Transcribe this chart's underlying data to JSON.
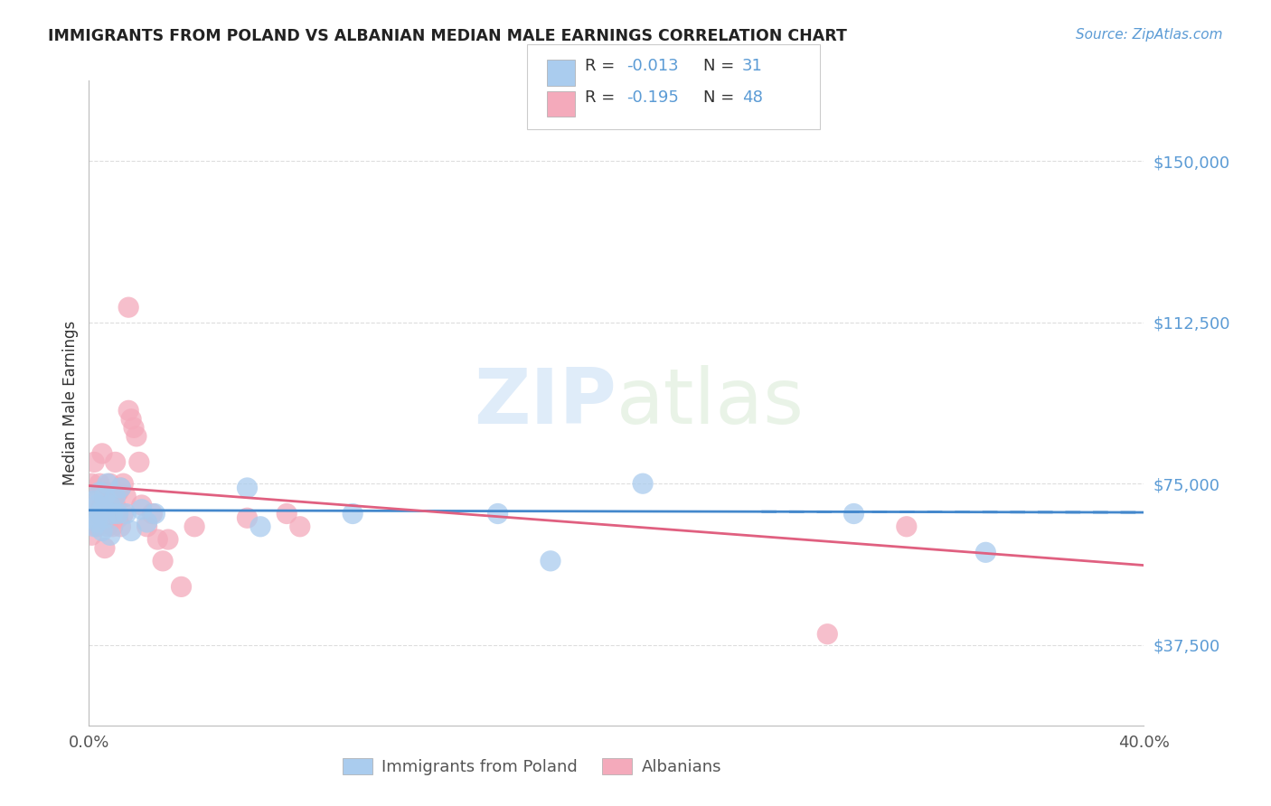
{
  "title": "IMMIGRANTS FROM POLAND VS ALBANIAN MEDIAN MALE EARNINGS CORRELATION CHART",
  "source": "Source: ZipAtlas.com",
  "ylabel": "Median Male Earnings",
  "yticks": [
    37500,
    75000,
    112500,
    150000
  ],
  "ytick_labels": [
    "$37,500",
    "$75,000",
    "$112,500",
    "$150,000"
  ],
  "xlim": [
    0.0,
    0.4
  ],
  "ylim": [
    18750,
    168750
  ],
  "legend_label1": "Immigrants from Poland",
  "legend_label2": "Albanians",
  "poland_color": "#aaccee",
  "albania_color": "#f4aabb",
  "poland_line_color": "#4488cc",
  "albania_line_color": "#e06080",
  "poland_R": -0.013,
  "poland_N": 31,
  "albania_R": -0.195,
  "albania_N": 48,
  "poland_scatter_x": [
    0.001,
    0.002,
    0.002,
    0.003,
    0.003,
    0.004,
    0.004,
    0.005,
    0.005,
    0.006,
    0.006,
    0.007,
    0.008,
    0.008,
    0.009,
    0.01,
    0.011,
    0.012,
    0.014,
    0.016,
    0.02,
    0.022,
    0.025,
    0.06,
    0.065,
    0.1,
    0.155,
    0.175,
    0.21,
    0.29,
    0.34
  ],
  "poland_scatter_y": [
    67000,
    71000,
    65000,
    70000,
    66000,
    68000,
    73000,
    69000,
    64000,
    72000,
    67000,
    75000,
    70000,
    63000,
    68000,
    72000,
    68000,
    74000,
    68000,
    64000,
    69000,
    66000,
    68000,
    74000,
    65000,
    68000,
    68000,
    57000,
    75000,
    68000,
    59000
  ],
  "albania_scatter_x": [
    0.001,
    0.001,
    0.002,
    0.002,
    0.003,
    0.003,
    0.004,
    0.004,
    0.005,
    0.005,
    0.006,
    0.006,
    0.006,
    0.007,
    0.007,
    0.007,
    0.008,
    0.008,
    0.009,
    0.009,
    0.01,
    0.01,
    0.011,
    0.011,
    0.012,
    0.012,
    0.013,
    0.013,
    0.014,
    0.015,
    0.015,
    0.016,
    0.017,
    0.018,
    0.019,
    0.02,
    0.022,
    0.024,
    0.026,
    0.028,
    0.03,
    0.035,
    0.04,
    0.06,
    0.075,
    0.08,
    0.28,
    0.31
  ],
  "albania_scatter_y": [
    63000,
    75000,
    68000,
    80000,
    72000,
    65000,
    75000,
    68000,
    70000,
    82000,
    73000,
    67000,
    60000,
    70000,
    65000,
    72000,
    68000,
    75000,
    71000,
    65000,
    80000,
    70000,
    73000,
    67000,
    74000,
    65000,
    75000,
    68000,
    72000,
    116000,
    92000,
    90000,
    88000,
    86000,
    80000,
    70000,
    65000,
    68000,
    62000,
    57000,
    62000,
    51000,
    65000,
    67000,
    68000,
    65000,
    40000,
    65000
  ],
  "poland_line_x0": 0.0,
  "poland_line_y0": 68800,
  "poland_line_x1": 0.4,
  "poland_line_y1": 68300,
  "albania_line_x0": 0.0,
  "albania_line_y0": 74500,
  "albania_line_x1": 0.4,
  "albania_line_y1": 56000,
  "watermark": "ZIPatlas",
  "background_color": "#ffffff",
  "grid_color": "#dddddd"
}
